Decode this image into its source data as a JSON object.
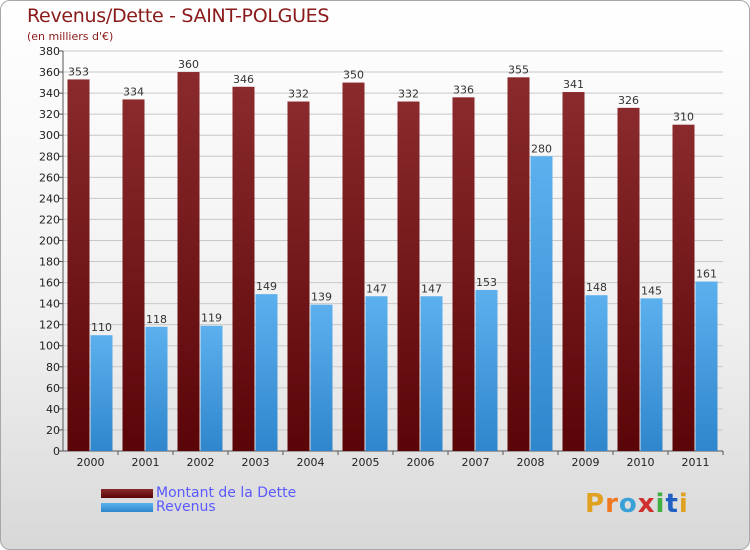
{
  "title": "Revenus/Dette - SAINT-POLGUES",
  "subtitle": "(en milliers d'€)",
  "logo": {
    "text": "Proxiti",
    "colors": [
      "#e0a020",
      "#f07820",
      "#3aa0d8",
      "#d03030",
      "#40b040",
      "#2060c0",
      "#e0a020"
    ]
  },
  "colors": {
    "dette": "#7a1518",
    "revenus": "#4aa3e3",
    "grid": "#c8c8c8",
    "tick_text": "#222222"
  },
  "chart_data": {
    "type": "bar",
    "title": "Revenus/Dette - SAINT-POLGUES",
    "subtitle": "(en milliers d'€)",
    "categories": [
      "2000",
      "2001",
      "2002",
      "2003",
      "2004",
      "2005",
      "2006",
      "2007",
      "2008",
      "2009",
      "2010",
      "2011"
    ],
    "series": [
      {
        "name": "Montant de la Dette",
        "values": [
          353,
          334,
          360,
          346,
          332,
          350,
          332,
          336,
          355,
          341,
          326,
          310
        ]
      },
      {
        "name": "Revenus",
        "values": [
          110,
          118,
          119,
          149,
          139,
          147,
          147,
          153,
          280,
          148,
          145,
          161
        ]
      }
    ],
    "ylim": [
      0,
      380
    ],
    "ytick_step": 20,
    "grid": true,
    "legend_position": "bottom-left"
  }
}
